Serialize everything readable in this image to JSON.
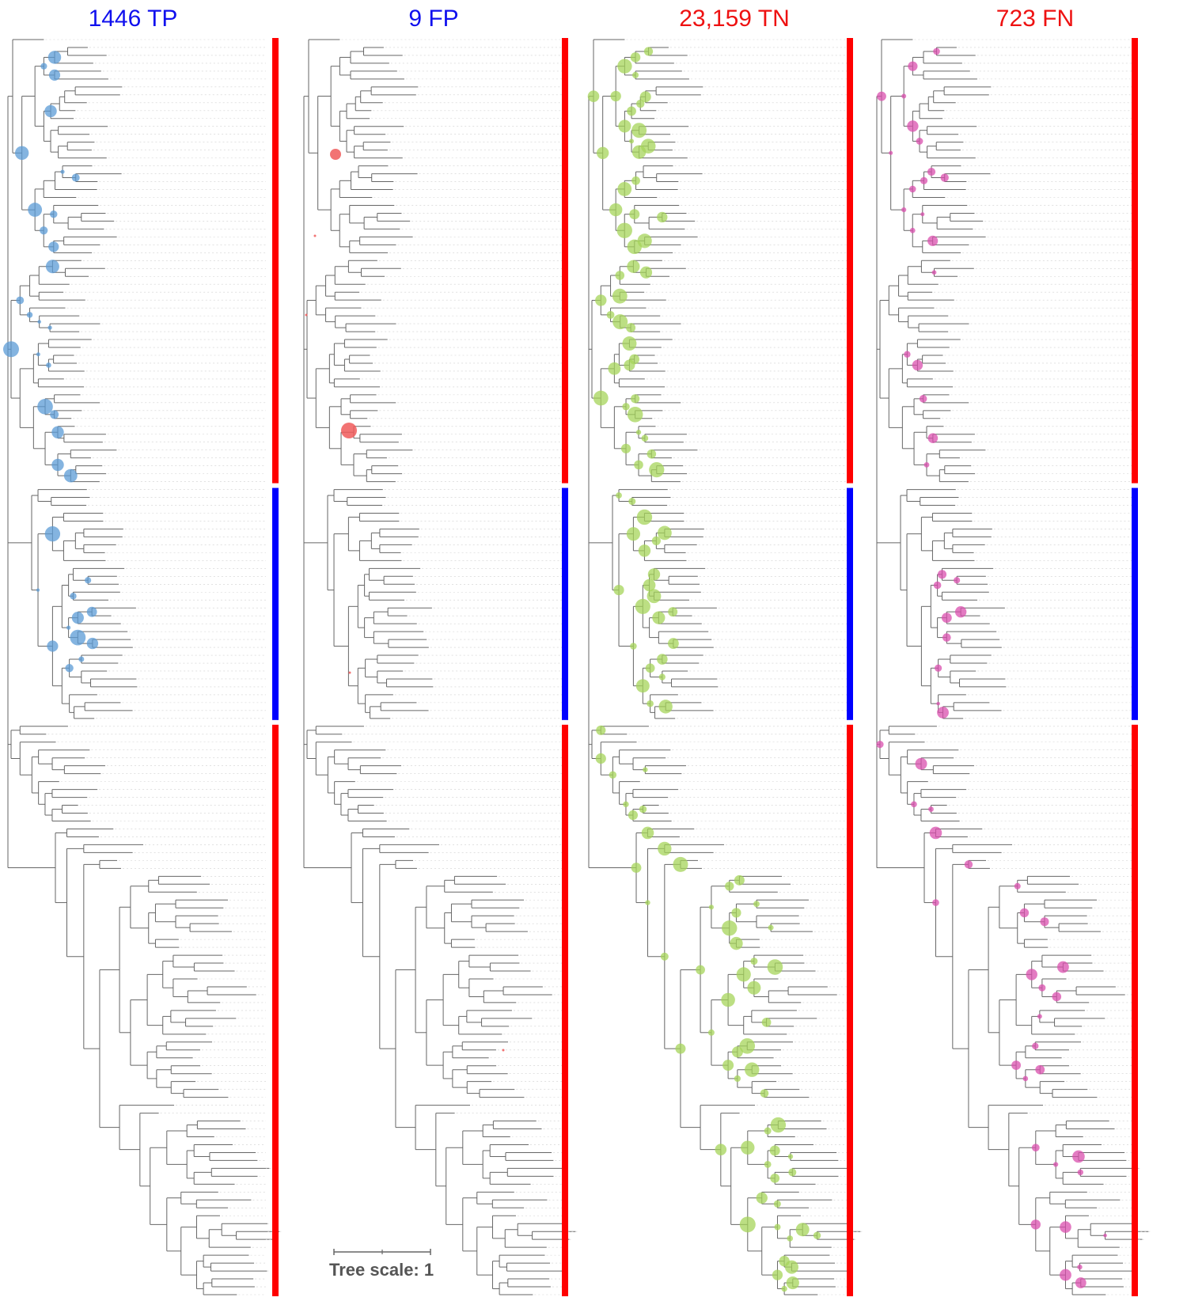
{
  "panels": [
    {
      "title": "1446 TP",
      "title_color": "#1010ee",
      "node_color": "#5b9bd5",
      "node_key": "tp"
    },
    {
      "title": "9 FP",
      "title_color": "#1010ee",
      "node_color": "#f05a5a",
      "node_key": "fp"
    },
    {
      "title": "23,159 TN",
      "title_color": "#ee1111",
      "node_color": "#a6d45a",
      "node_key": "tn"
    },
    {
      "title": "723 FN",
      "title_color": "#ee1111",
      "node_color": "#d94fad",
      "node_key": "fn"
    }
  ],
  "class_bars": [
    {
      "label_color": "#ff0000"
    },
    {
      "label_color": "#0000ff"
    },
    {
      "label_color": "#ff0000"
    }
  ],
  "scale": {
    "label": "Tree scale: 1"
  },
  "colors": {
    "branch": "#666666",
    "leader": "#d0d0d0"
  }
}
